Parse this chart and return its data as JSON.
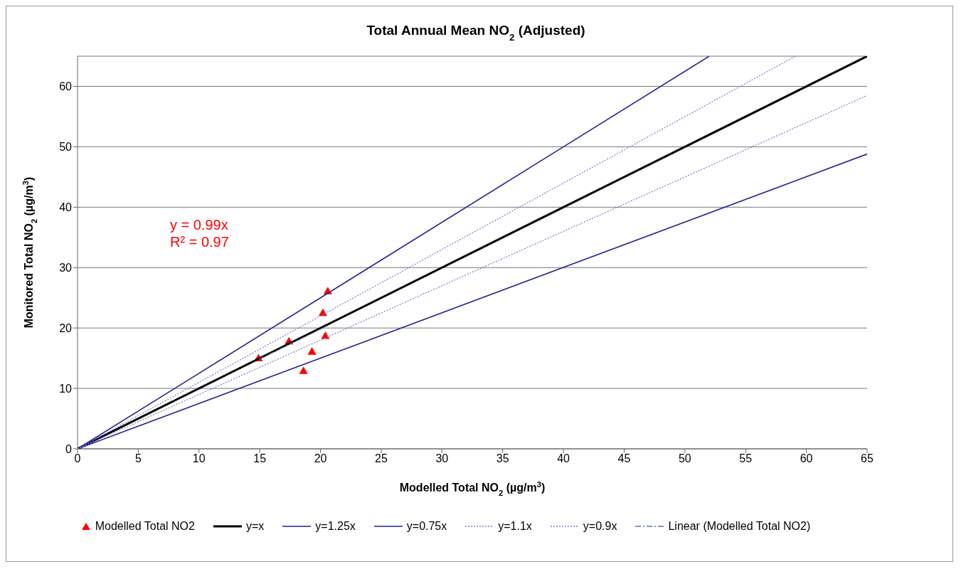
{
  "chart_data": {
    "type": "scatter",
    "title": "Total Annual Mean NO$_{2}$ (Adjusted)",
    "xlabel": "Modelled Total NO$_{2}$ (µg/m$^{3}$)",
    "ylabel": "Monitored Total NO$_{2}$ (µg/m$^{3}$)",
    "annotations": [
      "y = 0.99x",
      "R² = 0.97"
    ],
    "xlim": [
      0,
      65
    ],
    "xticks": [
      0,
      5,
      10,
      15,
      20,
      25,
      30,
      35,
      40,
      45,
      50,
      55,
      60,
      65
    ],
    "ylim": [
      0,
      65
    ],
    "yticks": [
      0,
      10,
      20,
      30,
      40,
      50,
      60
    ],
    "grid": "y",
    "legend": "bottom",
    "series": [
      {
        "name": "Modelled Total NO2",
        "marker": "triangle",
        "color": "#ff0000",
        "x": [
          14.9,
          17.4,
          19.3,
          18.6,
          20.2,
          20.4,
          20.6
        ],
        "values": [
          14.9,
          17.7,
          16.0,
          12.8,
          22.4,
          18.6,
          26.0
        ]
      },
      {
        "name": "y=x",
        "type": "line",
        "line_style": "solid",
        "color": "#000000",
        "x": [
          0,
          65
        ],
        "values": [
          0,
          65
        ]
      },
      {
        "name": "y=1.25x",
        "type": "line",
        "line_style": "solid",
        "color": "#22229a",
        "x": [
          0,
          52
        ],
        "values": [
          0,
          65
        ]
      },
      {
        "name": "y=0.75x",
        "type": "line",
        "line_style": "solid",
        "color": "#22229a",
        "x": [
          0,
          65
        ],
        "values": [
          0,
          48.8
        ]
      },
      {
        "name": "y=1.1x",
        "type": "line",
        "line_style": "dotted",
        "color": "#7a7acc",
        "x": [
          0,
          59.1
        ],
        "values": [
          0,
          65
        ]
      },
      {
        "name": "y=0.9x",
        "type": "line",
        "line_style": "dotted",
        "color": "#7a7acc",
        "x": [
          0,
          65
        ],
        "values": [
          0,
          58.5
        ]
      },
      {
        "name": "Linear (Modelled Total NO2)",
        "type": "line",
        "line_style": "dashed",
        "color": "#5577aa",
        "x": [
          14.9,
          20.6
        ],
        "values": [
          14.8,
          20.4
        ]
      }
    ]
  }
}
